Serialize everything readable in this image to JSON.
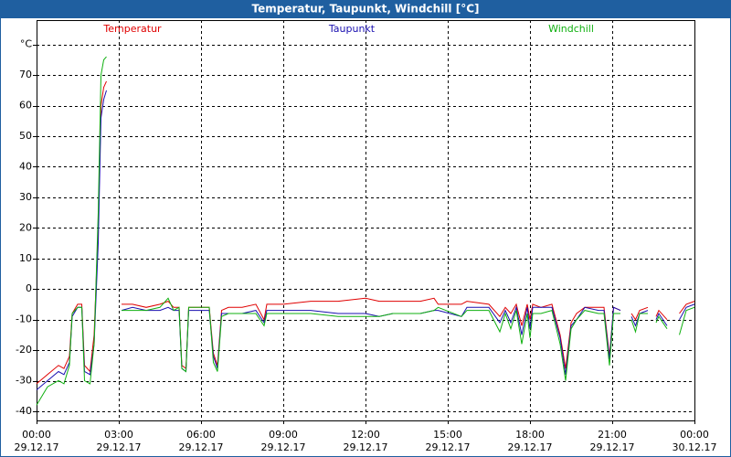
{
  "chart_data": {
    "type": "line",
    "title": "Temperatur, Taupunkt, Windchill [°C]",
    "x": [
      0,
      0.4,
      0.8,
      1.0,
      1.2,
      1.3,
      1.5,
      1.65,
      1.75,
      1.95,
      2.1,
      2.25,
      2.35,
      2.45,
      2.55,
      2.8,
      3.1,
      3.5,
      4.0,
      4.5,
      4.8,
      5.0,
      5.2,
      5.3,
      5.45,
      5.55,
      6.0,
      6.3,
      6.45,
      6.6,
      6.75,
      7.0,
      7.5,
      8.0,
      8.3,
      8.4,
      9.0,
      10.0,
      11.0,
      12.0,
      12.5,
      13.0,
      14.0,
      14.5,
      14.65,
      15.5,
      15.7,
      16.5,
      16.9,
      17.1,
      17.3,
      17.5,
      17.7,
      17.9,
      18.0,
      18.1,
      18.4,
      18.8,
      19.1,
      19.3,
      19.5,
      19.7,
      20.0,
      20.5,
      20.7,
      20.9,
      21.05,
      21.3,
      21.4,
      21.7,
      21.85,
      22.0,
      22.3,
      22.4,
      22.6,
      22.7,
      23.0,
      23.3,
      23.45,
      23.7,
      24.0
    ],
    "series": [
      {
        "name": "Temperatur",
        "color": "#e00000",
        "values": [
          -31,
          -28,
          -25,
          -26,
          -22,
          -8,
          -5,
          -5,
          -25,
          -27,
          -15,
          20,
          60,
          66,
          68,
          null,
          -5,
          -5,
          -6,
          -5,
          -4,
          -6,
          -6,
          -25,
          -26,
          -6,
          -6,
          -6,
          -21,
          -25,
          -7,
          -6,
          -6,
          -5,
          -10,
          -5,
          -5,
          -4,
          -4,
          -3,
          -4,
          -4,
          -4,
          -3,
          -5,
          -5,
          -4,
          -5,
          -9,
          -6,
          -8,
          -5,
          -12,
          -5,
          -10,
          -5,
          -6,
          -5,
          -15,
          -26,
          -11,
          -8,
          -6,
          -6,
          -6,
          -22,
          -6,
          -7,
          null,
          -8,
          -10,
          -7,
          -6,
          null,
          -9,
          -7,
          -10,
          null,
          -8,
          -5,
          -4
        ]
      },
      {
        "name": "Taupunkt",
        "color": "#1a10b0",
        "values": [
          -33,
          -30,
          -27,
          -28,
          -24,
          -9,
          -6,
          -6,
          -27,
          -28,
          -18,
          15,
          56,
          62,
          65,
          null,
          -7,
          -6,
          -7,
          -7,
          -6,
          -7,
          -7,
          -26,
          -27,
          -7,
          -7,
          -7,
          -22,
          -26,
          -8,
          -8,
          -8,
          -7,
          -11,
          -7,
          -7,
          -7,
          -8,
          -8,
          -9,
          -8,
          -8,
          -7,
          -7,
          -9,
          -6,
          -6,
          -11,
          -7,
          -11,
          -6,
          -15,
          -6,
          -13,
          -6,
          -6,
          -6,
          -16,
          -28,
          -12,
          -10,
          -6,
          -7,
          -7,
          -23,
          -6,
          -7,
          null,
          -9,
          -12,
          -8,
          -7,
          null,
          -10,
          -8,
          -12,
          null,
          -10,
          -6,
          -5
        ]
      },
      {
        "name": "Windchill",
        "color": "#10b010",
        "values": [
          -38,
          -32,
          -30,
          -31,
          -25,
          -8,
          -6,
          -6,
          -30,
          -31,
          -18,
          25,
          70,
          75,
          76,
          null,
          -7,
          -7,
          -7,
          -6,
          -3,
          -7,
          -6,
          -26,
          -27,
          -6,
          -6,
          -6,
          -24,
          -27,
          -9,
          -8,
          -8,
          -8,
          -12,
          -8,
          -8,
          -8,
          -9,
          -9,
          -9,
          -8,
          -8,
          -7,
          -6,
          -9,
          -7,
          -7,
          -14,
          -8,
          -13,
          -7,
          -18,
          -8,
          -16,
          -8,
          -8,
          -7,
          -18,
          -30,
          -13,
          -10,
          -7,
          -8,
          -8,
          -25,
          -8,
          -8,
          null,
          -10,
          -14,
          -8,
          -8,
          null,
          -11,
          -9,
          -13,
          null,
          -15,
          -7,
          -6
        ]
      }
    ],
    "xlim": [
      0,
      24
    ],
    "xticks": [
      {
        "value": 0,
        "label": "00:00"
      },
      {
        "value": 3,
        "label": "03:00"
      },
      {
        "value": 6,
        "label": "06:00"
      },
      {
        "value": 9,
        "label": "09:00"
      },
      {
        "value": 12,
        "label": "12:00"
      },
      {
        "value": 15,
        "label": "15:00"
      },
      {
        "value": 18,
        "label": "18:00"
      },
      {
        "value": 21,
        "label": "21:00"
      },
      {
        "value": 24,
        "label": "00:00"
      }
    ],
    "xtick_dates": [
      "29.12.17",
      "29.12.17",
      "29.12.17",
      "29.12.17",
      "29.12.17",
      "29.12.17",
      "29.12.17",
      "29.12.17",
      "30.12.17"
    ],
    "ylim": [
      -43,
      88
    ],
    "yticks": [
      {
        "value": 80,
        "label": "°C"
      },
      70,
      60,
      50,
      40,
      30,
      20,
      10,
      0,
      -10,
      -20,
      -30,
      -40
    ],
    "grid": true
  }
}
